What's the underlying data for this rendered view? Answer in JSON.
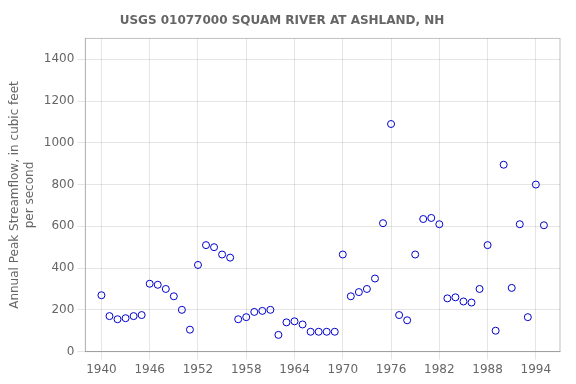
{
  "chart_data": {
    "type": "scatter",
    "title": "USGS 01077000 SQUAM RIVER AT ASHLAND, NH",
    "ylabel": "Annual Peak Streamflow, in cubic feet\nper second",
    "x": [
      1940,
      1941,
      1942,
      1943,
      1944,
      1945,
      1946,
      1947,
      1948,
      1949,
      1950,
      1951,
      1952,
      1953,
      1954,
      1955,
      1956,
      1957,
      1958,
      1959,
      1960,
      1961,
      1962,
      1963,
      1964,
      1965,
      1966,
      1967,
      1968,
      1969,
      1970,
      1971,
      1972,
      1973,
      1974,
      1975,
      1976,
      1977,
      1978,
      1979,
      1980,
      1981,
      1982,
      1983,
      1984,
      1985,
      1986,
      1987,
      1988,
      1989,
      1990,
      1991,
      1992,
      1993,
      1994,
      1995
    ],
    "values": [
      270,
      170,
      155,
      160,
      170,
      175,
      325,
      320,
      300,
      265,
      200,
      105,
      415,
      510,
      500,
      465,
      450,
      155,
      165,
      190,
      195,
      200,
      80,
      140,
      145,
      130,
      95,
      95,
      95,
      95,
      465,
      265,
      285,
      300,
      350,
      615,
      1090,
      175,
      150,
      465,
      635,
      640,
      610,
      255,
      260,
      240,
      235,
      300,
      510,
      100,
      895,
      305,
      610,
      165,
      800,
      605
    ],
    "xlim": [
      1938,
      1997
    ],
    "ylim": [
      0,
      1500
    ],
    "xticks": [
      1940,
      1946,
      1952,
      1958,
      1964,
      1970,
      1976,
      1982,
      1988,
      1994
    ],
    "yticks": [
      0,
      200,
      400,
      600,
      800,
      1000,
      1200,
      1400
    ],
    "color": "#0000cc",
    "marker": "circle",
    "grid": true
  }
}
